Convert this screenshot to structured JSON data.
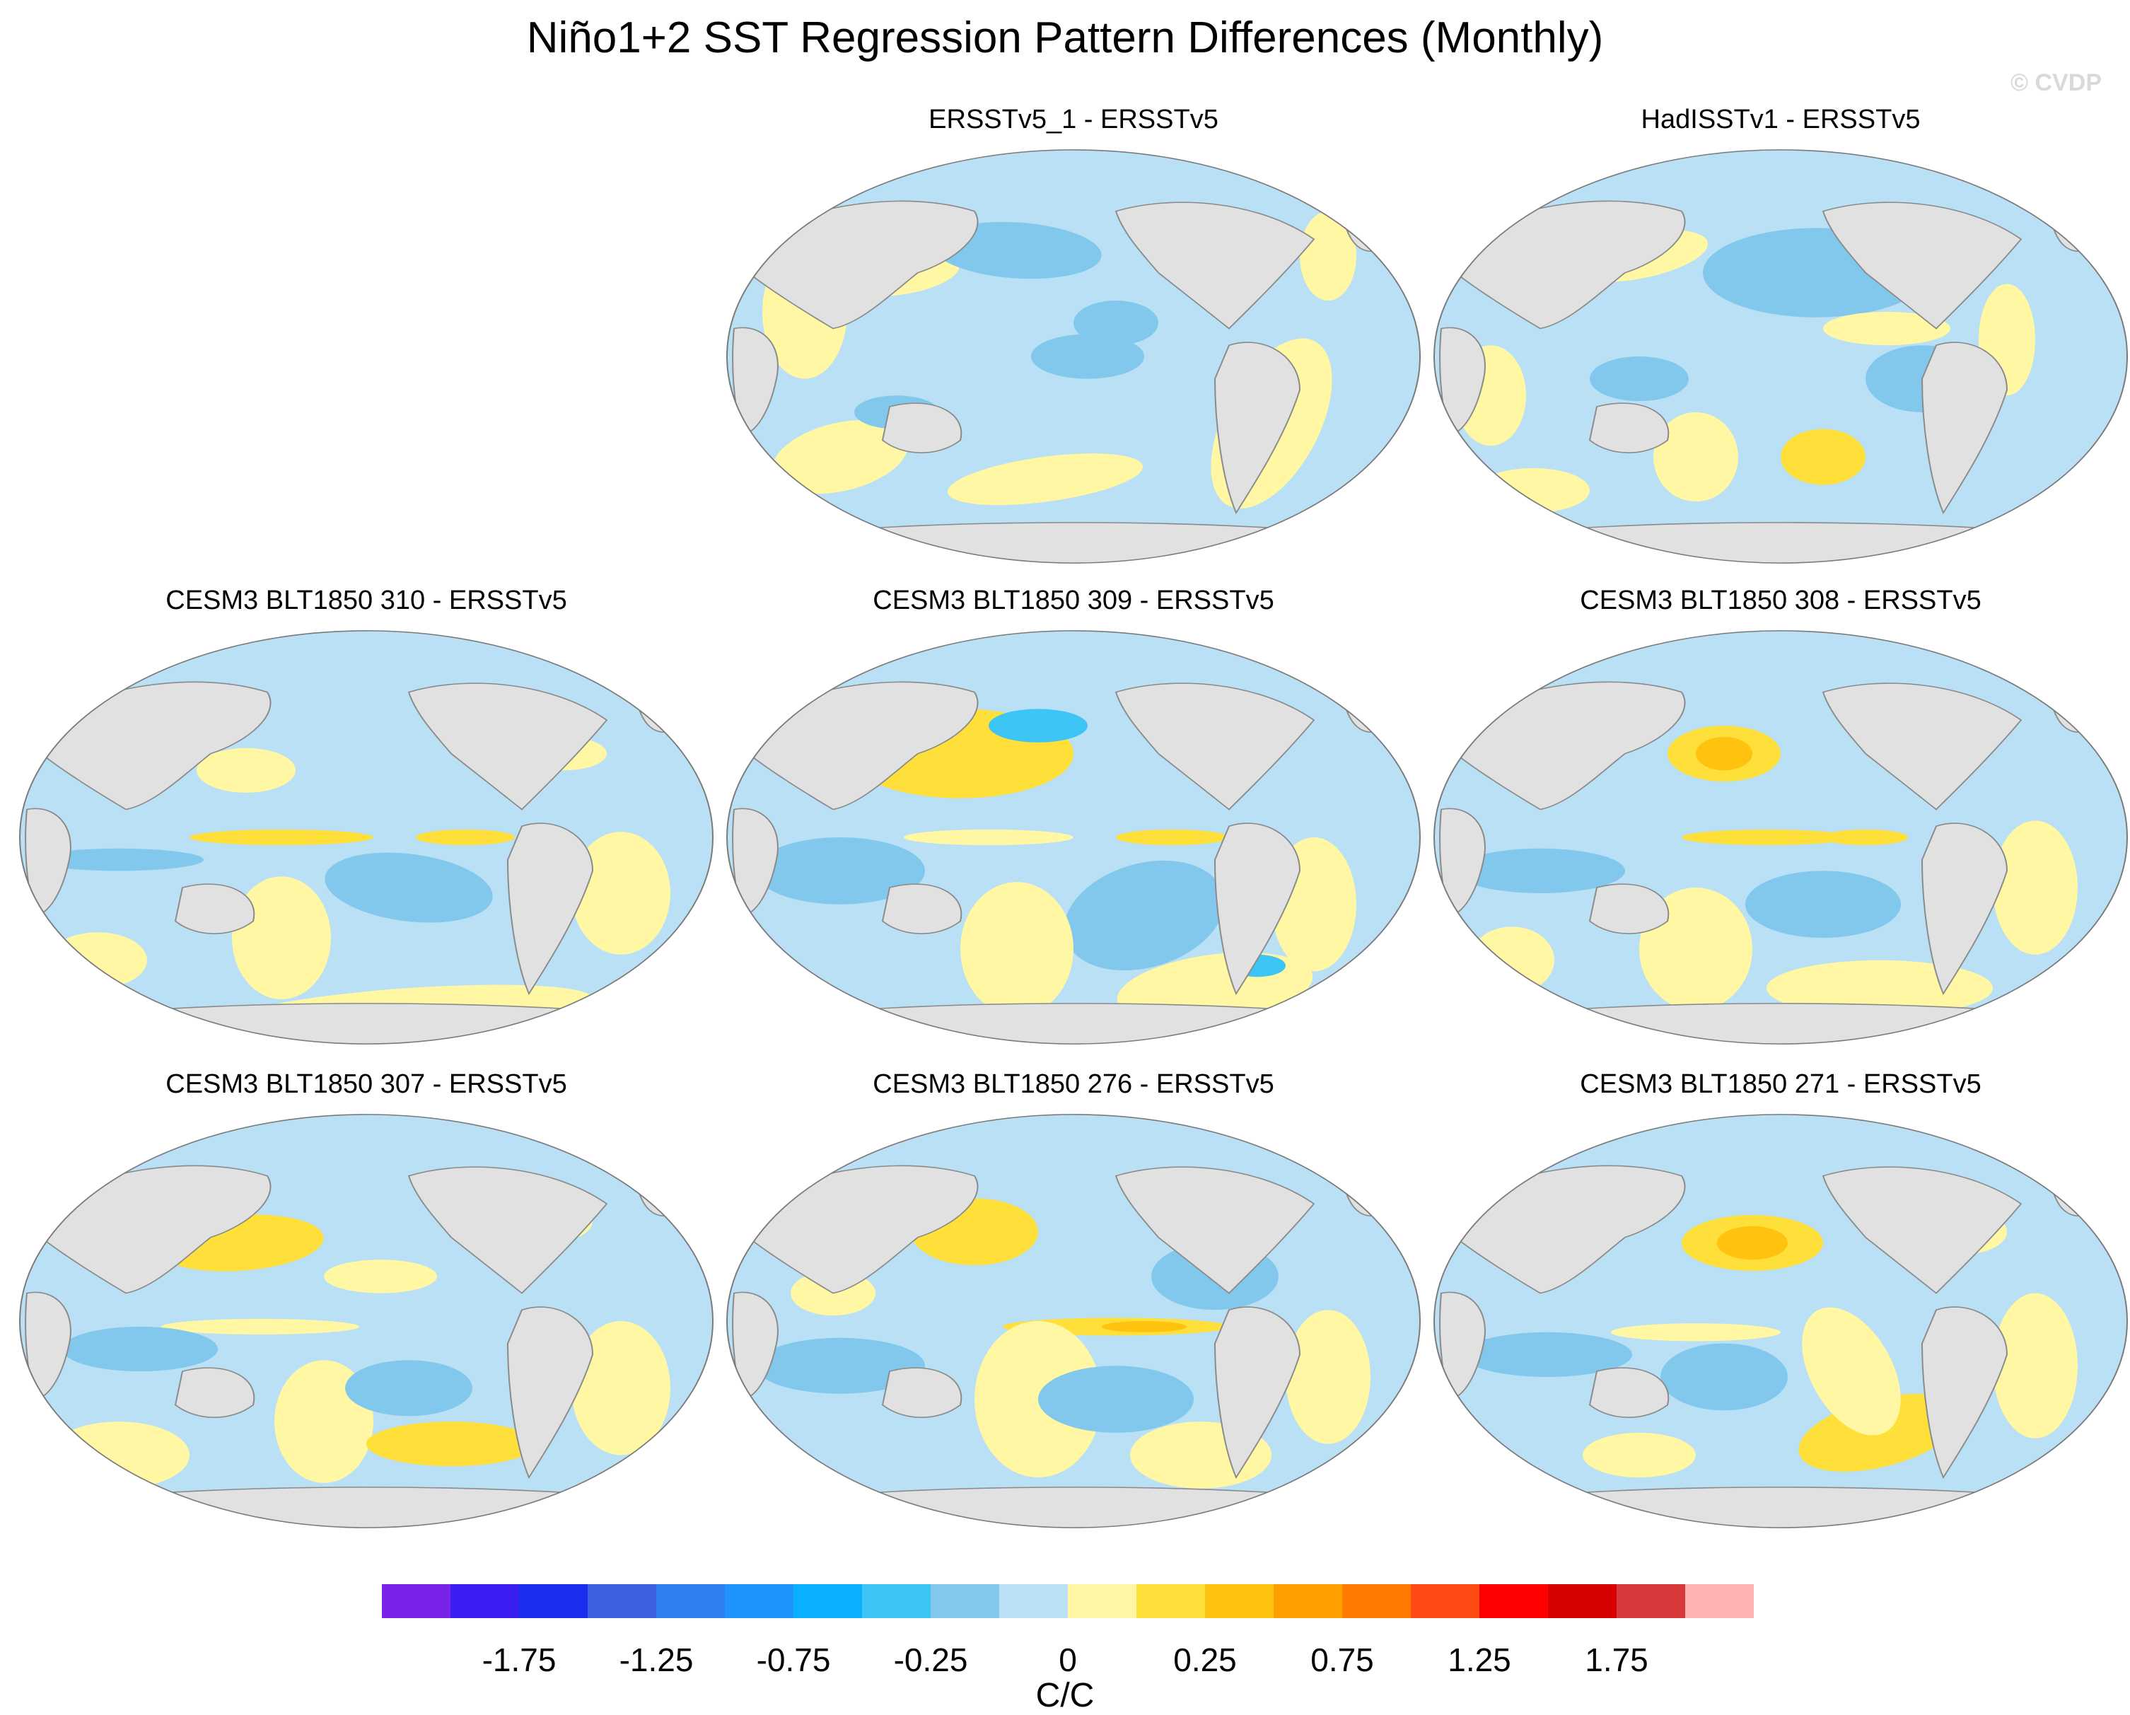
{
  "title": "Niño1+2 SST Regression Pattern Differences (Monthly)",
  "copyright": "© CVDP",
  "panels": [
    {
      "title": "ERSSTv5_1 - ERSSTv5",
      "pattern": 0
    },
    {
      "title": "HadISSTv1 - ERSSTv5",
      "pattern": 1
    },
    {
      "title": "CESM3 BLT1850 310 - ERSSTv5",
      "pattern": 2
    },
    {
      "title": "CESM3 BLT1850 309 - ERSSTv5",
      "pattern": 3
    },
    {
      "title": "CESM3 BLT1850 308 - ERSSTv5",
      "pattern": 4
    },
    {
      "title": "CESM3 BLT1850 307 - ERSSTv5",
      "pattern": 5
    },
    {
      "title": "CESM3 BLT1850 276 - ERSSTv5",
      "pattern": 6
    },
    {
      "title": "CESM3 BLT1850 271 - ERSSTv5",
      "pattern": 7
    }
  ],
  "colorbar": {
    "colors": [
      "#7b22e8",
      "#3b1ff2",
      "#1a2ef0",
      "#3d5fe0",
      "#2f7ff0",
      "#1e94ff",
      "#0ab0ff",
      "#3cc5f5",
      "#82c8ec",
      "#b9e0f5",
      "#fff7a3",
      "#ffe03a",
      "#ffc20e",
      "#ff9e00",
      "#ff7a00",
      "#ff4a13",
      "#ff0000",
      "#d60000",
      "#d63a3a",
      "#ffb2b2"
    ],
    "labels": [
      "-1.75",
      "-1.25",
      "-0.75",
      "-0.25",
      "0",
      "0.25",
      "0.75",
      "1.25",
      "1.75"
    ],
    "units": "C/C"
  },
  "colors": {
    "ocean_base": "#b9e0f5",
    "land": "#e1e1e1",
    "coast": "#8a8a8a",
    "weak_pos": "#fff7a3",
    "pos": "#ffe03a",
    "strong_pos": "#ffc20e",
    "neg": "#82c8ec",
    "strong_neg": "#3cc5f5"
  }
}
